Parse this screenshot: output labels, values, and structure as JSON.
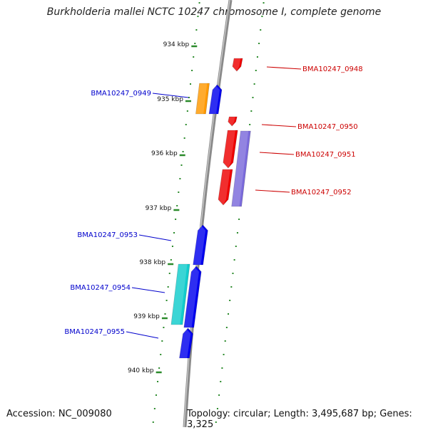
{
  "title": "Burkholderia mallei NCTC 10247 chromosome I, complete genome",
  "accession": "Accession: NC_009080",
  "topology": "Topology: circular; Length: 3,495,687 bp; Genes: 3,325",
  "colors": {
    "backbone": "#8a8a8a",
    "scale_dots": "#2a8a2a",
    "forward_label": "#0000cc",
    "reverse_label": "#cc0000",
    "blue": "#0000ee",
    "orange": "#ff9900",
    "red": "#ee0000",
    "purple": "#7a6adb",
    "cyan": "#11cccc"
  },
  "ticks": [
    {
      "label": "934 kbp"
    },
    {
      "label": "935 kbp"
    },
    {
      "label": "936 kbp"
    },
    {
      "label": "937 kbp"
    },
    {
      "label": "938 kbp"
    },
    {
      "label": "939 kbp"
    },
    {
      "label": "940 kbp"
    }
  ],
  "genes": [
    {
      "label": "BMA10247_0948",
      "strand": "reverse",
      "color": "red"
    },
    {
      "label": "BMA10247_0949",
      "strand": "forward",
      "color": "blue"
    },
    {
      "label": "BMA10247_0950",
      "strand": "reverse",
      "color": "red"
    },
    {
      "label": "BMA10247_0951",
      "strand": "reverse",
      "color": "red"
    },
    {
      "label": "BMA10247_0952",
      "strand": "reverse",
      "color": "red"
    },
    {
      "label": "BMA10247_0953",
      "strand": "forward",
      "color": "blue"
    },
    {
      "label": "BMA10247_0954",
      "strand": "forward",
      "color": "blue"
    },
    {
      "label": "BMA10247_0955",
      "strand": "forward",
      "color": "blue"
    }
  ]
}
